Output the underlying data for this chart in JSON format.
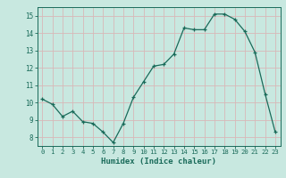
{
  "x": [
    0,
    1,
    2,
    3,
    4,
    5,
    6,
    7,
    8,
    9,
    10,
    11,
    12,
    13,
    14,
    15,
    16,
    17,
    18,
    19,
    20,
    21,
    22,
    23
  ],
  "y": [
    10.2,
    9.9,
    9.2,
    9.5,
    8.9,
    8.8,
    8.3,
    7.7,
    8.8,
    10.3,
    11.2,
    12.1,
    12.2,
    12.8,
    14.3,
    14.2,
    14.2,
    15.1,
    15.1,
    14.8,
    14.1,
    12.9,
    10.5,
    8.3
  ],
  "line_color": "#1a6b5a",
  "marker": "+",
  "marker_size": 3,
  "bg_color": "#c8e8e0",
  "grid_color": "#d8b8b8",
  "axis_color": "#1a6b5a",
  "xlabel": "Humidex (Indice chaleur)",
  "ylim": [
    7.5,
    15.5
  ],
  "xlim": [
    -0.5,
    23.5
  ],
  "yticks": [
    8,
    9,
    10,
    11,
    12,
    13,
    14,
    15
  ],
  "xticks": [
    0,
    1,
    2,
    3,
    4,
    5,
    6,
    7,
    8,
    9,
    10,
    11,
    12,
    13,
    14,
    15,
    16,
    17,
    18,
    19,
    20,
    21,
    22,
    23
  ]
}
